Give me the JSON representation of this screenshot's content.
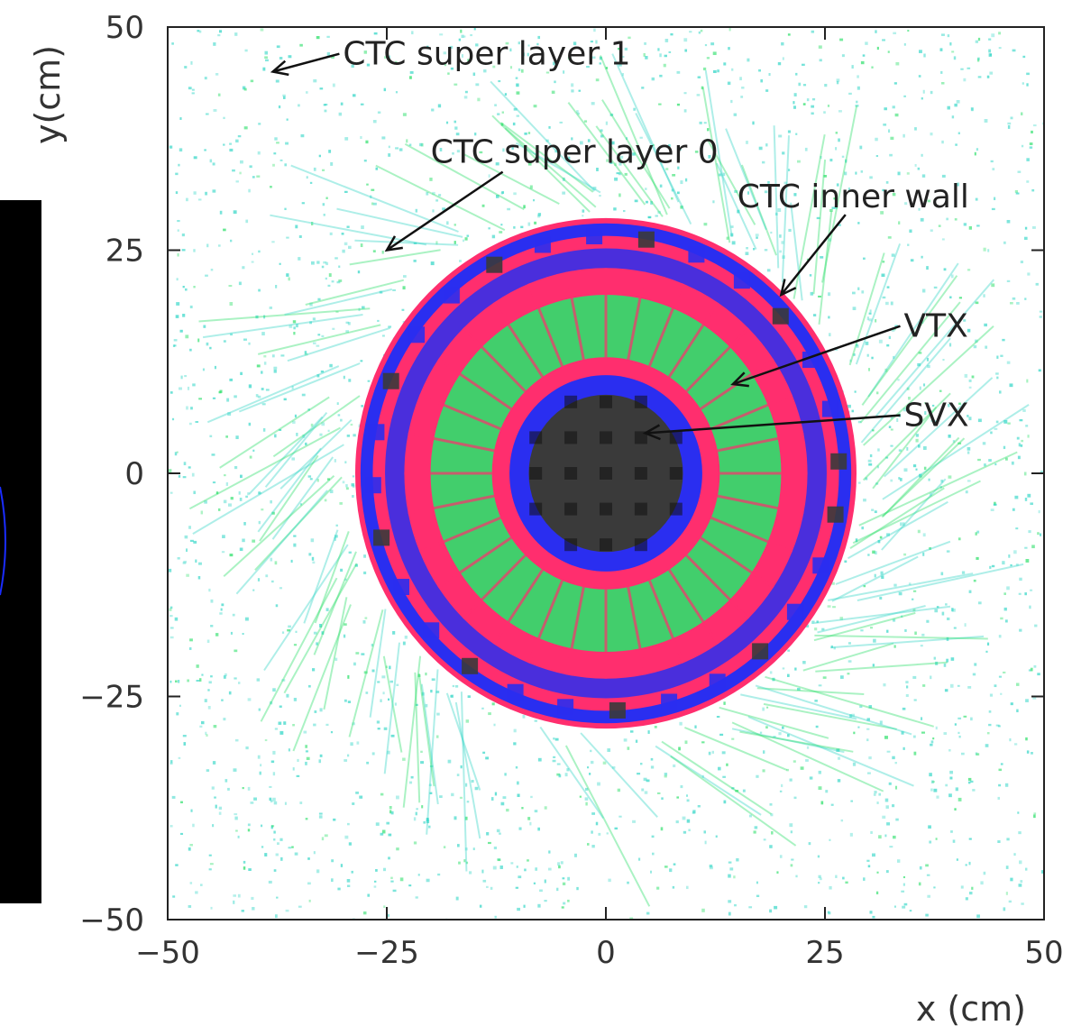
{
  "chart_data": {
    "type": "heatmap",
    "title": "",
    "xlabel": "x (cm)",
    "ylabel": "y(cm)",
    "xlim": [
      -50,
      50
    ],
    "ylim": [
      -50,
      50
    ],
    "xticks": [
      -50,
      -25,
      0,
      25,
      50
    ],
    "yticks": [
      -50,
      -25,
      0,
      25,
      50
    ],
    "xtick_labels": [
      "−50",
      "−25",
      "0",
      "25",
      "50"
    ],
    "ytick_labels": [
      "−50",
      "−25",
      "0",
      "25",
      "50"
    ],
    "grid": false,
    "annotations": [
      {
        "text": "CTC super layer 1",
        "label_at": [
          -30,
          47
        ],
        "points_to": [
          -38,
          45
        ]
      },
      {
        "text": "CTC super layer 0",
        "label_at": [
          -20,
          36
        ],
        "points_to": [
          -25,
          25
        ]
      },
      {
        "text": "CTC inner wall",
        "label_at": [
          15,
          31
        ],
        "points_to": [
          20,
          20
        ]
      },
      {
        "text": "VTX",
        "label_at": [
          34,
          16.5
        ],
        "points_to": [
          14.5,
          10
        ]
      },
      {
        "text": "SVX",
        "label_at": [
          34,
          6.5
        ],
        "points_to": [
          4.5,
          4.5
        ]
      }
    ],
    "regions": [
      {
        "name": "SVX",
        "radius_inner": 0,
        "radius_outer": 11
      },
      {
        "name": "VTX",
        "radius_inner": 11,
        "radius_outer": 23
      },
      {
        "name": "CTC inner wall",
        "radius_inner": 23,
        "radius_outer": 28
      }
    ],
    "colors": {
      "background_hits": "#37d7c8",
      "low_density": "#2ee06b",
      "mid_density": "#ff2e6e",
      "high_density": "#2a2ef0",
      "max_density": "#3a3a3a",
      "colorbar": "#000000"
    }
  }
}
